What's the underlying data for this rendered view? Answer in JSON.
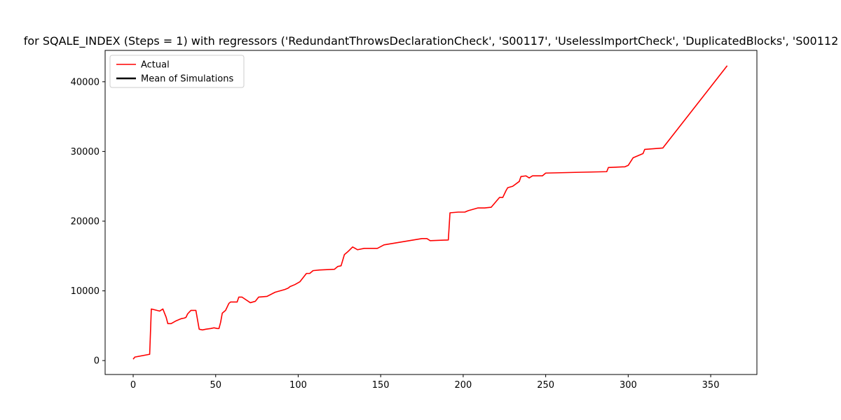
{
  "chart_data": {
    "type": "line",
    "title": "for SQALE_INDEX (Steps = 1) with regressors ('RedundantThrowsDeclarationCheck', 'S00117', 'UselessImportCheck', 'DuplicatedBlocks', 'S00112",
    "xlabel": "",
    "ylabel": "",
    "xlim": [
      -17,
      378
    ],
    "ylim": [
      -2000,
      44500
    ],
    "xticks": [
      0,
      50,
      100,
      150,
      200,
      250,
      300,
      350
    ],
    "yticks": [
      0,
      10000,
      20000,
      30000,
      40000
    ],
    "grid": false,
    "legend_position": "top-left",
    "series": [
      {
        "name": "Actual",
        "color": "#ff0000",
        "points": [
          [
            0,
            200
          ],
          [
            1,
            500
          ],
          [
            10,
            900
          ],
          [
            11,
            7400
          ],
          [
            16,
            7100
          ],
          [
            18,
            7400
          ],
          [
            20,
            6200
          ],
          [
            21,
            5300
          ],
          [
            23,
            5300
          ],
          [
            26,
            5700
          ],
          [
            29,
            6000
          ],
          [
            31,
            6100
          ],
          [
            32,
            6200
          ],
          [
            33,
            6700
          ],
          [
            35,
            7200
          ],
          [
            38,
            7200
          ],
          [
            40,
            4500
          ],
          [
            42,
            4400
          ],
          [
            44,
            4500
          ],
          [
            47,
            4600
          ],
          [
            49,
            4700
          ],
          [
            51,
            4600
          ],
          [
            52,
            4600
          ],
          [
            53,
            5500
          ],
          [
            54,
            6800
          ],
          [
            56,
            7200
          ],
          [
            58,
            8200
          ],
          [
            59,
            8400
          ],
          [
            63,
            8400
          ],
          [
            64,
            9100
          ],
          [
            66,
            9100
          ],
          [
            71,
            8300
          ],
          [
            74,
            8500
          ],
          [
            76,
            9100
          ],
          [
            81,
            9200
          ],
          [
            86,
            9800
          ],
          [
            89,
            10000
          ],
          [
            92,
            10200
          ],
          [
            94,
            10400
          ],
          [
            95,
            10600
          ],
          [
            98,
            10900
          ],
          [
            101,
            11300
          ],
          [
            103,
            11900
          ],
          [
            105,
            12500
          ],
          [
            107,
            12500
          ],
          [
            109,
            12900
          ],
          [
            113,
            13000
          ],
          [
            122,
            13100
          ],
          [
            124,
            13500
          ],
          [
            126,
            13600
          ],
          [
            128,
            15200
          ],
          [
            130,
            15600
          ],
          [
            133,
            16300
          ],
          [
            136,
            15900
          ],
          [
            140,
            16100
          ],
          [
            148,
            16100
          ],
          [
            152,
            16600
          ],
          [
            175,
            17500
          ],
          [
            178,
            17500
          ],
          [
            180,
            17200
          ],
          [
            191,
            17300
          ],
          [
            192,
            21200
          ],
          [
            197,
            21300
          ],
          [
            201,
            21300
          ],
          [
            203,
            21500
          ],
          [
            209,
            21900
          ],
          [
            213,
            21900
          ],
          [
            217,
            22000
          ],
          [
            222,
            23400
          ],
          [
            224,
            23400
          ],
          [
            226,
            24400
          ],
          [
            227,
            24800
          ],
          [
            230,
            25000
          ],
          [
            234,
            25700
          ],
          [
            235,
            26400
          ],
          [
            238,
            26500
          ],
          [
            240,
            26200
          ],
          [
            242,
            26500
          ],
          [
            248,
            26500
          ],
          [
            250,
            26900
          ],
          [
            268,
            27000
          ],
          [
            287,
            27100
          ],
          [
            288,
            27700
          ],
          [
            298,
            27800
          ],
          [
            300,
            28000
          ],
          [
            303,
            29100
          ],
          [
            309,
            29700
          ],
          [
            310,
            30300
          ],
          [
            321,
            30500
          ],
          [
            360,
            42300
          ]
        ]
      },
      {
        "name": "Mean of Simulations",
        "color": "#000000",
        "points": []
      }
    ]
  }
}
